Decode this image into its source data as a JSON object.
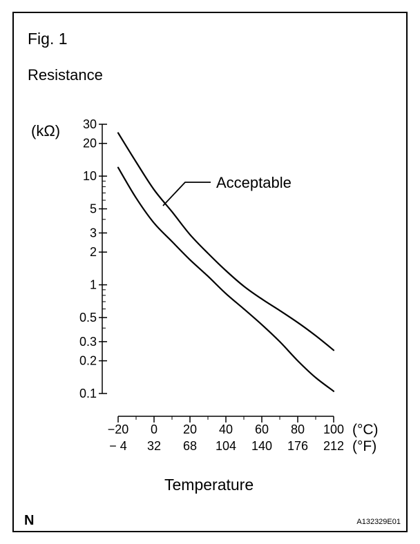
{
  "figure": {
    "label": "Fig. 1",
    "corner_mark": "N",
    "code": "A132329E01"
  },
  "chart_data": {
    "type": "line",
    "title": "Resistance",
    "ylabel": "(kΩ)",
    "xlabel": "Temperature",
    "y_scale": "log",
    "ylim": [
      0.1,
      30
    ],
    "xlim": [
      -20,
      100
    ],
    "y_ticks": [
      {
        "value": 30,
        "label": "30"
      },
      {
        "value": 20,
        "label": "20"
      },
      {
        "value": 10,
        "label": "10"
      },
      {
        "value": 5,
        "label": "5"
      },
      {
        "value": 3,
        "label": "3"
      },
      {
        "value": 2,
        "label": "2"
      },
      {
        "value": 1,
        "label": "1"
      },
      {
        "value": 0.5,
        "label": "0.5"
      },
      {
        "value": 0.3,
        "label": "0.3"
      },
      {
        "value": 0.2,
        "label": "0.2"
      },
      {
        "value": 0.1,
        "label": "0.1"
      }
    ],
    "x_ticks": [
      {
        "value": -20,
        "celsius": "−20",
        "fahrenheit": "− 4"
      },
      {
        "value": 0,
        "celsius": "0",
        "fahrenheit": "32"
      },
      {
        "value": 20,
        "celsius": "20",
        "fahrenheit": "68"
      },
      {
        "value": 40,
        "celsius": "40",
        "fahrenheit": "104"
      },
      {
        "value": 60,
        "celsius": "60",
        "fahrenheit": "140"
      },
      {
        "value": 80,
        "celsius": "80",
        "fahrenheit": "176"
      },
      {
        "value": 100,
        "celsius": "100",
        "fahrenheit": "212"
      }
    ],
    "x_unit_c": "(°C)",
    "x_unit_f": "(°F)",
    "annotation": "Acceptable",
    "series": [
      {
        "role": "upper-limit",
        "points": [
          [
            -20,
            25
          ],
          [
            -10,
            13.5
          ],
          [
            0,
            7.5
          ],
          [
            10,
            4.7
          ],
          [
            20,
            2.9
          ],
          [
            30,
            1.95
          ],
          [
            40,
            1.35
          ],
          [
            50,
            0.97
          ],
          [
            60,
            0.74
          ],
          [
            70,
            0.58
          ],
          [
            80,
            0.45
          ],
          [
            90,
            0.34
          ],
          [
            100,
            0.25
          ]
        ]
      },
      {
        "role": "lower-limit",
        "points": [
          [
            -20,
            12
          ],
          [
            -10,
            6.3
          ],
          [
            0,
            3.7
          ],
          [
            10,
            2.5
          ],
          [
            20,
            1.7
          ],
          [
            30,
            1.2
          ],
          [
            40,
            0.83
          ],
          [
            50,
            0.6
          ],
          [
            60,
            0.43
          ],
          [
            70,
            0.3
          ],
          [
            80,
            0.2
          ],
          [
            90,
            0.14
          ],
          [
            100,
            0.105
          ]
        ]
      }
    ]
  }
}
